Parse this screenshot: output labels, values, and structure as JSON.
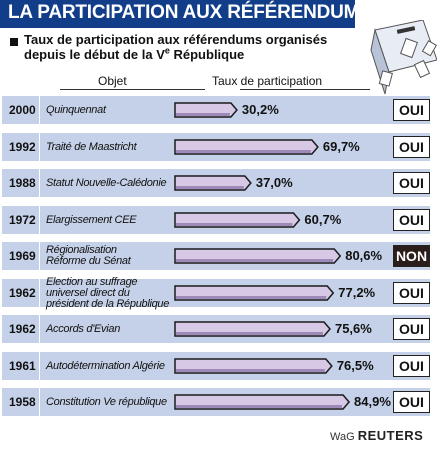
{
  "header": {
    "title": "LA PARTICIPATION AUX RÉFÉRENDUMS",
    "subtitle_line1": "Taux de participation aux référendums organisés",
    "subtitle_line2_pre": "depuis le début de la V",
    "subtitle_line2_sup": "e",
    "subtitle_line2_post": " République",
    "col_objet": "Objet",
    "col_taux": "Taux de participation"
  },
  "footer": {
    "prefix": "WaG ",
    "brand": "REUTERS"
  },
  "chart_data": {
    "type": "bar",
    "title": "LA PARTICIPATION AUX RÉFÉRENDUMS",
    "subtitle": "Taux de participation aux référendums organisés depuis le début de la Ve République",
    "xlabel": "",
    "ylabel": "Taux de participation",
    "unit": "%",
    "rows": [
      {
        "year": "2000",
        "objet": [
          "Quinquennat"
        ],
        "value": 30.2,
        "value_label": "30,2%",
        "result": "OUI"
      },
      {
        "year": "1992",
        "objet": [
          "Traité de Maastricht"
        ],
        "value": 69.7,
        "value_label": "69,7%",
        "result": "OUI"
      },
      {
        "year": "1988",
        "objet": [
          "Statut Nouvelle-Calédonie"
        ],
        "value": 37.0,
        "value_label": "37,0%",
        "result": "OUI"
      },
      {
        "year": "1972",
        "objet": [
          "Elargissement CEE"
        ],
        "value": 60.7,
        "value_label": "60,7%",
        "result": "OUI"
      },
      {
        "year": "1969",
        "objet": [
          "Régionalisation",
          "Réforme du Sénat"
        ],
        "value": 80.6,
        "value_label": "80,6%",
        "result": "NON"
      },
      {
        "year": "1962",
        "objet": [
          "Election au suffrage",
          "universel direct du",
          "président de la République"
        ],
        "value": 77.2,
        "value_label": "77,2%",
        "result": "OUI"
      },
      {
        "year": "1962",
        "objet": [
          "Accords d'Evian"
        ],
        "value": 75.6,
        "value_label": "75,6%",
        "result": "OUI"
      },
      {
        "year": "1961",
        "objet": [
          "Autodétermination Algérie"
        ],
        "value": 76.5,
        "value_label": "76,5%",
        "result": "OUI"
      },
      {
        "year": "1958",
        "objet": [
          "Constitution Ve république"
        ],
        "value": 84.9,
        "value_label": "84,9%",
        "result": "OUI"
      }
    ],
    "colors": {
      "title_bg": "#123e89",
      "row_bg": "#c5d1e8",
      "bar_fill": "#d7c8e6",
      "bar_stroke": "#1a1a1a",
      "non_bg": "#2a1d1a"
    }
  }
}
